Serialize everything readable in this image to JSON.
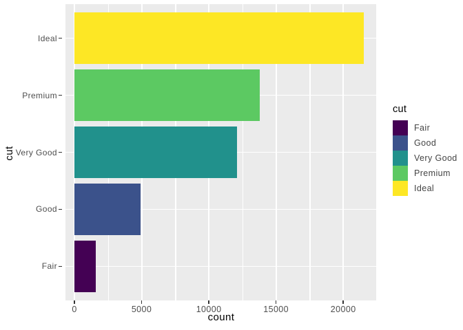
{
  "figure": {
    "background": "#FFFFFF"
  },
  "chart_data": {
    "type": "bar",
    "orientation": "horizontal",
    "title": "",
    "xlabel": "count",
    "ylabel": "cut",
    "legend_title": "cut",
    "legend_position": "right",
    "categories": [
      "Fair",
      "Good",
      "Very Good",
      "Premium",
      "Ideal"
    ],
    "values": [
      1610,
      4906,
      12082,
      13791,
      21551
    ],
    "colors": [
      "#440154",
      "#3B528B",
      "#21918C",
      "#5CC962",
      "#FDE725"
    ],
    "bar_order_top_to_bottom": [
      "Ideal",
      "Premium",
      "Very Good",
      "Good",
      "Fair"
    ],
    "x_axis": {
      "label": "count",
      "ticks": [
        0,
        5000,
        10000,
        15000,
        20000
      ],
      "tick_labels": [
        "0",
        "5000",
        "10000",
        "15000",
        "20000"
      ],
      "minor_ticks": [
        2500,
        7500,
        12500,
        17500,
        22500
      ],
      "xlim_approx": [
        -700,
        22500
      ]
    },
    "y_axis": {
      "label": "cut",
      "tick_labels_top_to_bottom": [
        "Ideal",
        "Premium",
        "Very Good",
        "Good",
        "Fair"
      ]
    },
    "grid": true,
    "panel_background": "#EBEBEB",
    "gridline_color": "#FFFFFF",
    "tick_color": "#333333",
    "tick_label_color": "#4D4D4D",
    "axis_title_color": "#000000",
    "bar_width_fraction": 0.9
  }
}
